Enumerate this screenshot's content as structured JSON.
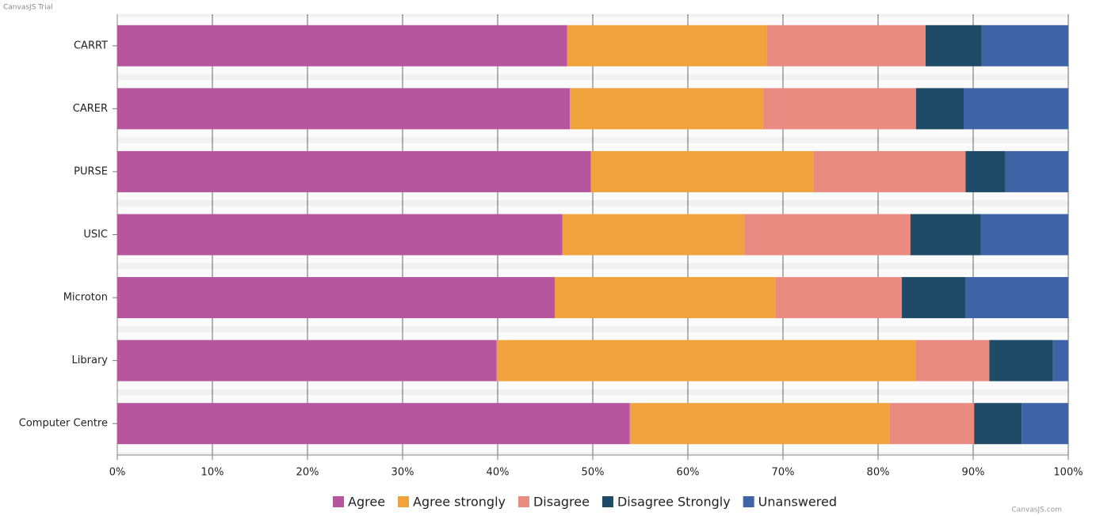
{
  "chart_data": {
    "type": "stacked_bar_horizontal",
    "credit_top": "CanvasJS Trial",
    "credit_bottom": "CanvasJS.com",
    "categories": [
      "CARRT",
      "CARER",
      "PURSE",
      "USIC",
      "Microton",
      "Library",
      "Computer Centre"
    ],
    "series": [
      {
        "name": "Agree",
        "color": "#b5569e",
        "values": [
          47.3,
          47.6,
          49.8,
          46.8,
          46.0,
          39.9,
          53.9
        ]
      },
      {
        "name": "Agree strongly",
        "color": "#f0a33d",
        "values": [
          21.0,
          20.3,
          23.4,
          19.1,
          23.2,
          44.1,
          27.3
        ]
      },
      {
        "name": "Disagree",
        "color": "#ea8b82",
        "values": [
          16.7,
          16.1,
          16.0,
          17.5,
          13.3,
          7.7,
          8.9
        ]
      },
      {
        "name": "Disagree Strongly",
        "color": "#1f4b68",
        "values": [
          5.9,
          5.0,
          4.2,
          7.4,
          6.7,
          6.7,
          5.0
        ]
      },
      {
        "name": "Unanswered",
        "color": "#3e64a7",
        "values": [
          9.1,
          11.0,
          6.6,
          9.2,
          10.8,
          1.6,
          4.9
        ]
      }
    ],
    "xlim": [
      0,
      100
    ],
    "xticks": [
      {
        "value": 0,
        "label": "0%"
      },
      {
        "value": 10,
        "label": "10%"
      },
      {
        "value": 20,
        "label": "20%"
      },
      {
        "value": 30,
        "label": "30%"
      },
      {
        "value": 40,
        "label": "40%"
      },
      {
        "value": 50,
        "label": "50%"
      },
      {
        "value": 60,
        "label": "60%"
      },
      {
        "value": 70,
        "label": "70%"
      },
      {
        "value": 80,
        "label": "80%"
      },
      {
        "value": 90,
        "label": "90%"
      },
      {
        "value": 100,
        "label": "100%"
      }
    ],
    "grid": true,
    "legend": "bottom"
  }
}
